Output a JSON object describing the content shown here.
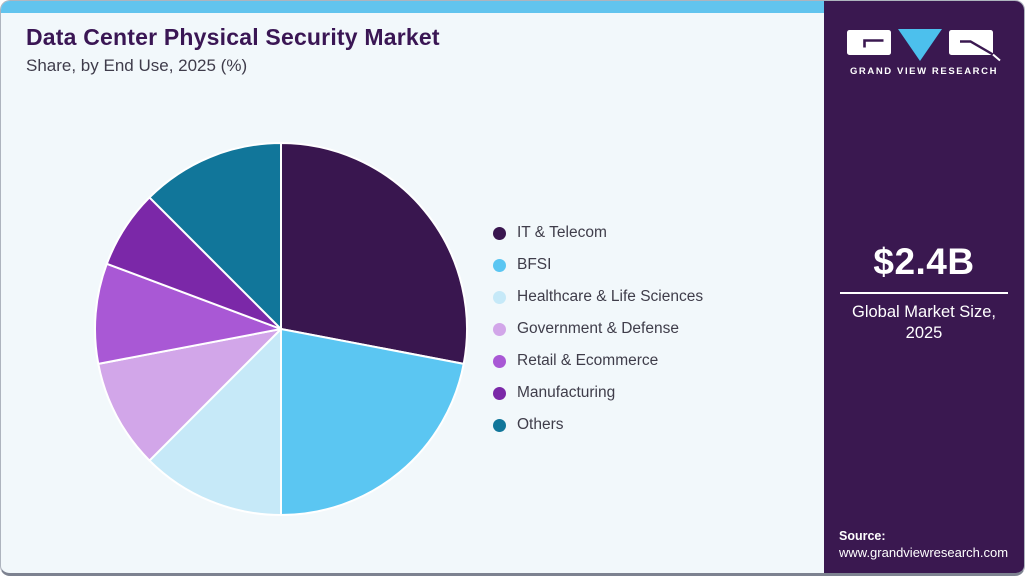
{
  "header": {
    "title": "Data Center Physical Security Market",
    "subtitle": "Share, by End Use, 2025 (%)"
  },
  "sidebar": {
    "logo": {
      "brand": "GRAND VIEW RESEARCH"
    },
    "market_size": {
      "value": "$2.4B",
      "label_line1": "Global Market Size,",
      "label_line2": "2025"
    },
    "source": {
      "label": "Source:",
      "url": "www.grandviewresearch.com"
    }
  },
  "chart_data": {
    "type": "pie",
    "title": "Data Center Physical Security Market Share, by End Use, 2025 (%)",
    "unit": "%",
    "start_angle_deg": 0,
    "direction": "clockwise",
    "data_labels": false,
    "legend_position": "right",
    "slices": [
      {
        "label": "IT & Telecom",
        "value": 28.0,
        "color": "#39164F"
      },
      {
        "label": "BFSI",
        "value": 22.0,
        "color": "#5BC6F2"
      },
      {
        "label": "Healthcare & Life Sciences",
        "value": 12.5,
        "color": "#C6E9F8"
      },
      {
        "label": "Government & Defense",
        "value": 9.5,
        "color": "#D2A6E9"
      },
      {
        "label": "Retail & Ecommerce",
        "value": 8.7,
        "color": "#A958D5"
      },
      {
        "label": "Manufacturing",
        "value": 6.8,
        "color": "#7B28A8"
      },
      {
        "label": "Others",
        "value": 12.5,
        "color": "#11769A"
      }
    ]
  },
  "theme": {
    "top_strip": "#62C4EE",
    "card_background": "#F2F8FB",
    "sidebar_background": "#3A1850",
    "title_color": "#3A1654",
    "text_color": "#3F3D4A",
    "logo_triangle_blue": "#4CC0ED",
    "slice_border": "#FFFFFF"
  }
}
